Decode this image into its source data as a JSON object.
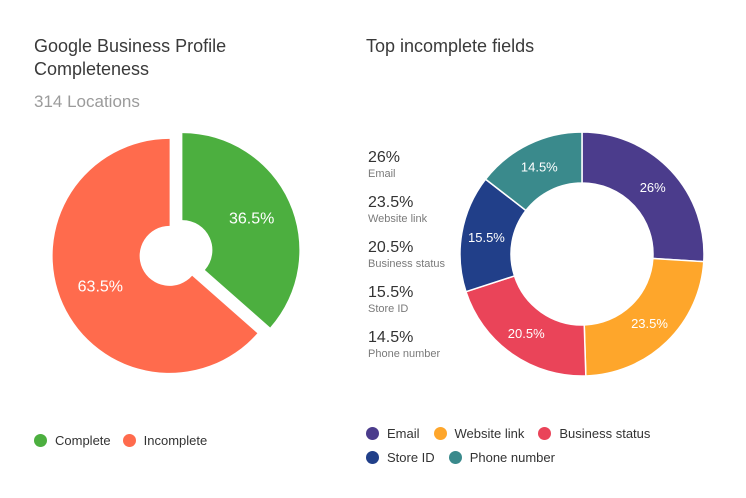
{
  "left": {
    "title": "Google Business Profile Completeness",
    "subtitle": "314 Locations"
  },
  "right": {
    "title": "Top incomplete fields"
  },
  "chart_data": [
    {
      "type": "pie",
      "title": "Google Business Profile Completeness",
      "subtitle": "314 Locations",
      "slices": [
        {
          "label": "Complete",
          "value": 36.5,
          "display": "36.5%",
          "color": "#4caf3f"
        },
        {
          "label": "Incomplete",
          "value": 63.5,
          "display": "63.5%",
          "color": "#ff6b4d"
        }
      ],
      "legend_position": "bottom-left"
    },
    {
      "type": "pie",
      "title": "Top incomplete fields",
      "slices": [
        {
          "label": "Email",
          "value": 26,
          "display": "26%",
          "color": "#4b3c8c"
        },
        {
          "label": "Website link",
          "value": 23.5,
          "display": "23.5%",
          "color": "#fea62b"
        },
        {
          "label": "Business status",
          "value": 20.5,
          "display": "20.5%",
          "color": "#ea4459"
        },
        {
          "label": "Store ID",
          "value": 15.5,
          "display": "15.5%",
          "color": "#213f89"
        },
        {
          "label": "Phone number",
          "value": 14.5,
          "display": "14.5%",
          "color": "#3a8a8c"
        }
      ],
      "legend_position": "bottom"
    }
  ]
}
